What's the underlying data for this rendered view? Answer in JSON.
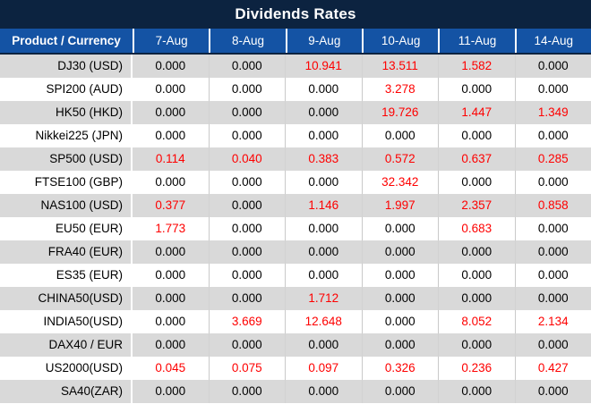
{
  "title": "Dividends Rates",
  "colors": {
    "title_bar_bg": "#0c2340",
    "header_bg": "#1453a4",
    "alt_row_bg": "#d9d9d9",
    "row_bg": "#ffffff",
    "value_red": "#fe0000",
    "value_black": "#000000"
  },
  "table": {
    "product_header": "Product / Currency",
    "date_headers": [
      "7-Aug",
      "8-Aug",
      "9-Aug",
      "10-Aug",
      "11-Aug",
      "14-Aug"
    ],
    "rows": [
      {
        "product": "DJ30 (USD)",
        "values": [
          "0.000",
          "0.000",
          "10.941",
          "13.511",
          "1.582",
          "0.000"
        ],
        "red": [
          false,
          false,
          true,
          true,
          true,
          false
        ]
      },
      {
        "product": "SPI200 (AUD)",
        "values": [
          "0.000",
          "0.000",
          "0.000",
          "3.278",
          "0.000",
          "0.000"
        ],
        "red": [
          false,
          false,
          false,
          true,
          false,
          false
        ]
      },
      {
        "product": "HK50 (HKD)",
        "values": [
          "0.000",
          "0.000",
          "0.000",
          "19.726",
          "1.447",
          "1.349"
        ],
        "red": [
          false,
          false,
          false,
          true,
          true,
          true
        ]
      },
      {
        "product": "Nikkei225 (JPN)",
        "values": [
          "0.000",
          "0.000",
          "0.000",
          "0.000",
          "0.000",
          "0.000"
        ],
        "red": [
          false,
          false,
          false,
          false,
          false,
          false
        ]
      },
      {
        "product": "SP500 (USD)",
        "values": [
          "0.114",
          "0.040",
          "0.383",
          "0.572",
          "0.637",
          "0.285"
        ],
        "red": [
          true,
          true,
          true,
          true,
          true,
          true
        ]
      },
      {
        "product": "FTSE100 (GBP)",
        "values": [
          "0.000",
          "0.000",
          "0.000",
          "32.342",
          "0.000",
          "0.000"
        ],
        "red": [
          false,
          false,
          false,
          true,
          false,
          false
        ]
      },
      {
        "product": "NAS100 (USD)",
        "values": [
          "0.377",
          "0.000",
          "1.146",
          "1.997",
          "2.357",
          "0.858"
        ],
        "red": [
          true,
          false,
          true,
          true,
          true,
          true
        ]
      },
      {
        "product": "EU50 (EUR)",
        "values": [
          "1.773",
          "0.000",
          "0.000",
          "0.000",
          "0.683",
          "0.000"
        ],
        "red": [
          true,
          false,
          false,
          false,
          true,
          false
        ]
      },
      {
        "product": "FRA40 (EUR)",
        "values": [
          "0.000",
          "0.000",
          "0.000",
          "0.000",
          "0.000",
          "0.000"
        ],
        "red": [
          false,
          false,
          false,
          false,
          false,
          false
        ]
      },
      {
        "product": "ES35 (EUR)",
        "values": [
          "0.000",
          "0.000",
          "0.000",
          "0.000",
          "0.000",
          "0.000"
        ],
        "red": [
          false,
          false,
          false,
          false,
          false,
          false
        ]
      },
      {
        "product": "CHINA50(USD)",
        "values": [
          "0.000",
          "0.000",
          "1.712",
          "0.000",
          "0.000",
          "0.000"
        ],
        "red": [
          false,
          false,
          true,
          false,
          false,
          false
        ]
      },
      {
        "product": "INDIA50(USD)",
        "values": [
          "0.000",
          "3.669",
          "12.648",
          "0.000",
          "8.052",
          "2.134"
        ],
        "red": [
          false,
          true,
          true,
          false,
          true,
          true
        ]
      },
      {
        "product": "DAX40 / EUR",
        "values": [
          "0.000",
          "0.000",
          "0.000",
          "0.000",
          "0.000",
          "0.000"
        ],
        "red": [
          false,
          false,
          false,
          false,
          false,
          false
        ]
      },
      {
        "product": "US2000(USD)",
        "values": [
          "0.045",
          "0.075",
          "0.097",
          "0.326",
          "0.236",
          "0.427"
        ],
        "red": [
          true,
          true,
          true,
          true,
          true,
          true
        ]
      },
      {
        "product": "SA40(ZAR)",
        "values": [
          "0.000",
          "0.000",
          "0.000",
          "0.000",
          "0.000",
          "0.000"
        ],
        "red": [
          false,
          false,
          false,
          false,
          false,
          false
        ]
      }
    ]
  }
}
